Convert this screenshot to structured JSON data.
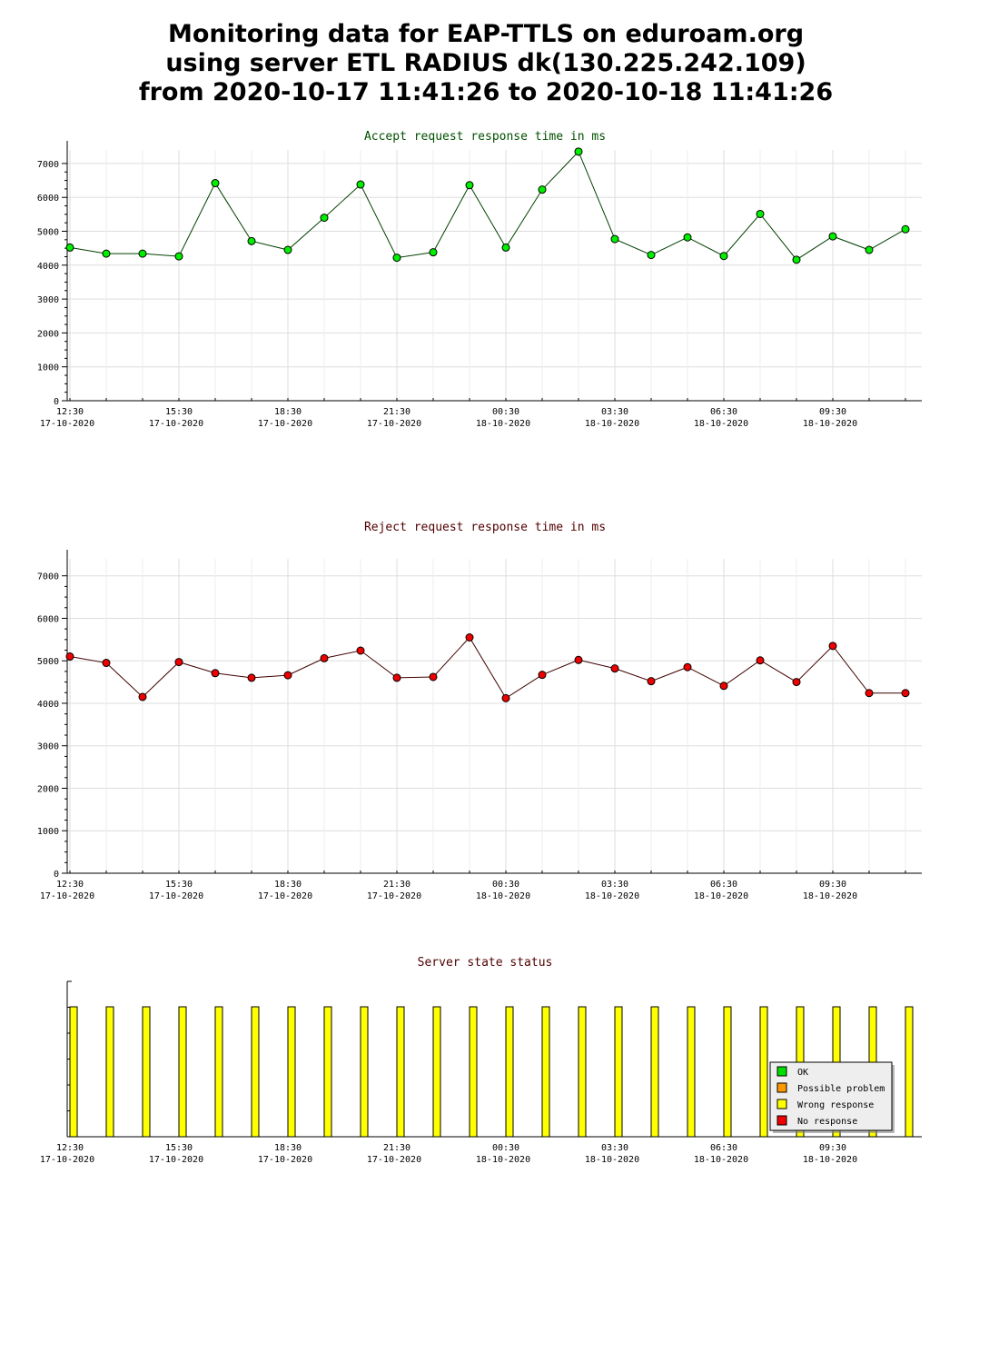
{
  "title_lines": [
    "Monitoring data for EAP-TTLS on eduroam.org",
    "using server ETL RADIUS dk(130.225.242.109)",
    "from 2020-10-17 11:41:26 to 2020-10-18 11:41:26"
  ],
  "chart_data": [
    {
      "type": "line",
      "title": "Accept request response time in ms",
      "title_color": "#005000",
      "line_color": "#004000",
      "marker_color": "#00ee00",
      "ylim": [
        0,
        7400
      ],
      "yticks": [
        0,
        1000,
        2000,
        3000,
        4000,
        5000,
        6000,
        7000
      ],
      "x_tick_labels": [
        [
          "12:30",
          "17-10-2020"
        ],
        [
          "15:30",
          "17-10-2020"
        ],
        [
          "18:30",
          "17-10-2020"
        ],
        [
          "21:30",
          "17-10-2020"
        ],
        [
          "00:30",
          "18-10-2020"
        ],
        [
          "03:30",
          "18-10-2020"
        ],
        [
          "06:30",
          "18-10-2020"
        ],
        [
          "09:30",
          "18-10-2020"
        ]
      ],
      "grid": true,
      "values": [
        4520,
        4340,
        4340,
        4260,
        6420,
        4710,
        4450,
        5400,
        6380,
        4220,
        4380,
        6360,
        4520,
        6230,
        7350,
        4770,
        4300,
        4820,
        4270,
        5510,
        4160,
        4850,
        4450,
        5060
      ]
    },
    {
      "type": "line",
      "title": "Reject request response time in ms",
      "title_color": "#500000",
      "line_color": "#400000",
      "marker_color": "#ee0000",
      "ylim": [
        0,
        7400
      ],
      "yticks": [
        0,
        1000,
        2000,
        3000,
        4000,
        5000,
        6000,
        7000
      ],
      "x_tick_labels": [
        [
          "12:30",
          "17-10-2020"
        ],
        [
          "15:30",
          "17-10-2020"
        ],
        [
          "18:30",
          "17-10-2020"
        ],
        [
          "21:30",
          "17-10-2020"
        ],
        [
          "00:30",
          "18-10-2020"
        ],
        [
          "03:30",
          "18-10-2020"
        ],
        [
          "06:30",
          "18-10-2020"
        ],
        [
          "09:30",
          "18-10-2020"
        ]
      ],
      "grid": true,
      "values": [
        5100,
        4950,
        4150,
        4970,
        4710,
        4600,
        4660,
        5060,
        5240,
        4600,
        4620,
        5550,
        4120,
        4670,
        5020,
        4820,
        4520,
        4850,
        4410,
        5010,
        4500,
        5350,
        4240,
        4240
      ]
    },
    {
      "type": "bar",
      "title": "Server state status",
      "title_color": "#500000",
      "x_tick_labels": [
        [
          "12:30",
          "17-10-2020"
        ],
        [
          "15:30",
          "17-10-2020"
        ],
        [
          "18:30",
          "17-10-2020"
        ],
        [
          "21:30",
          "17-10-2020"
        ],
        [
          "00:30",
          "18-10-2020"
        ],
        [
          "03:30",
          "18-10-2020"
        ],
        [
          "06:30",
          "18-10-2020"
        ],
        [
          "09:30",
          "18-10-2020"
        ]
      ],
      "states": [
        "Wrong response",
        "Wrong response",
        "Wrong response",
        "Wrong response",
        "Wrong response",
        "Wrong response",
        "Wrong response",
        "Wrong response",
        "Wrong response",
        "Wrong response",
        "Wrong response",
        "Wrong response",
        "Wrong response",
        "Wrong response",
        "Wrong response",
        "Wrong response",
        "Wrong response",
        "Wrong response",
        "Wrong response",
        "Wrong response",
        "Wrong response",
        "Wrong response",
        "Wrong response",
        "Wrong response"
      ],
      "legend": [
        {
          "label": "OK",
          "color": "#00dd00"
        },
        {
          "label": "Possible problem",
          "color": "#ff9900"
        },
        {
          "label": "Wrong response",
          "color": "#ffff00"
        },
        {
          "label": "No response",
          "color": "#ee0000"
        }
      ],
      "legend_position": "bottom-right"
    }
  ]
}
